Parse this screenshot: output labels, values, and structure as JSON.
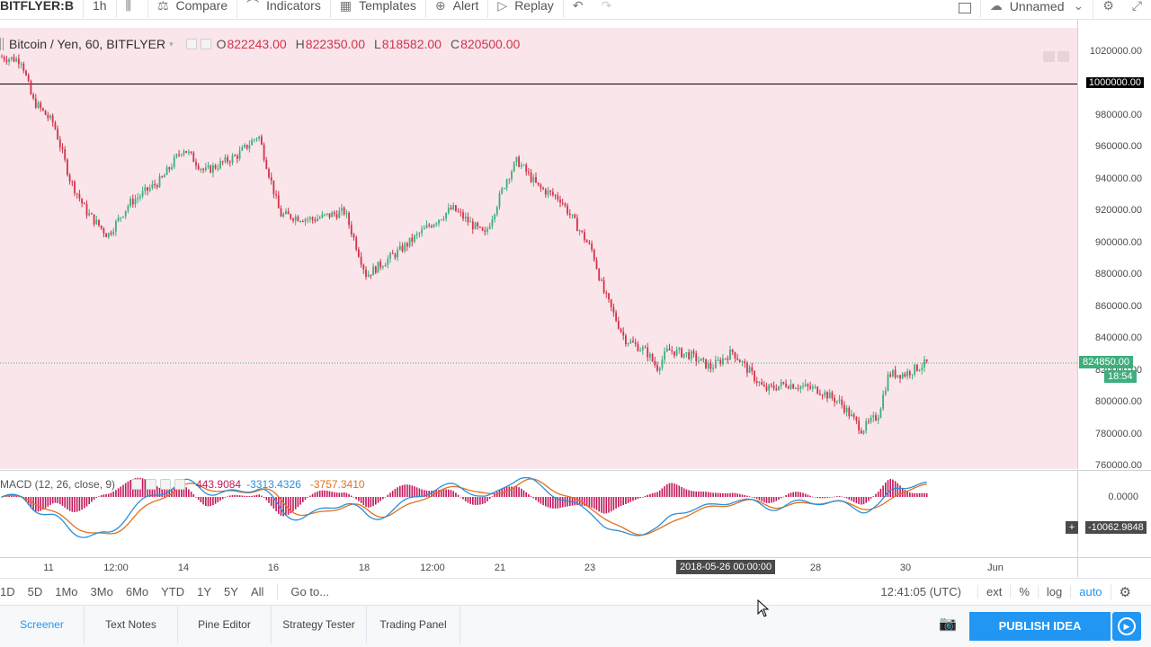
{
  "toolbar": {
    "symbol": "BITFLYER:B",
    "interval": "1h",
    "compare": "Compare",
    "indicators": "Indicators",
    "templates": "Templates",
    "alert": "Alert",
    "replay": "Replay",
    "layout_name": "Unnamed"
  },
  "legend": {
    "symbol_desc": "Bitcoin / Yen, 60, BITFLYER",
    "open_label": "O",
    "open": "822243.00",
    "high_label": "H",
    "high": "822350.00",
    "low_label": "L",
    "low": "818582.00",
    "close_label": "C",
    "close": "820500.00"
  },
  "price_axis": {
    "labels": [
      "1020000.00",
      "1000000.00",
      "980000.00",
      "960000.00",
      "940000.00",
      "920000.00",
      "900000.00",
      "880000.00",
      "860000.00",
      "840000.00",
      "820000.00",
      "800000.00",
      "780000.00",
      "760000.00"
    ],
    "horizontal_line": "1000000.00",
    "last_price": "824850.00",
    "countdown": "18:54"
  },
  "macd": {
    "name": "MACD (12, 26, close, 9)",
    "hist": "443.9084",
    "macd": "-3313.4326",
    "signal": "-3757.3410",
    "axis_zero": "0.0000",
    "axis_cursor": "-10062.9848"
  },
  "time_axis": {
    "labels": [
      "11",
      "12:00",
      "14",
      "16",
      "18",
      "12:00",
      "21",
      "23",
      "28",
      "30",
      "Jun"
    ],
    "crosshair": "2018-05-26 00:00:00"
  },
  "range_bar": {
    "ranges": [
      "1D",
      "5D",
      "1Mo",
      "3Mo",
      "6Mo",
      "YTD",
      "1Y",
      "5Y",
      "All"
    ],
    "goto": "Go to...",
    "clock": "12:41:05 (UTC)",
    "ext": "ext",
    "percent": "%",
    "log": "log",
    "auto": "auto"
  },
  "bottom": {
    "tabs": [
      "Screener",
      "Text Notes",
      "Pine Editor",
      "Strategy Tester",
      "Trading Panel"
    ],
    "publish": "PUBLISH IDEA"
  },
  "colors": {
    "up": "#3fae7d",
    "down": "#d2334b",
    "bg": "#f9e5ea",
    "accent": "#2196f3",
    "macd_line": "#2b8fd6",
    "signal_line": "#e2711d",
    "hist": "#c2185b"
  },
  "chart_data": {
    "type": "candlestick",
    "title": "Bitcoin / Yen, 60, BITFLYER",
    "ylim": [
      760000,
      1020000
    ],
    "y_ticks": [
      760000,
      780000,
      800000,
      820000,
      840000,
      860000,
      880000,
      900000,
      920000,
      940000,
      960000,
      980000,
      1000000,
      1020000
    ],
    "reference_line": 1000000,
    "last": 824850,
    "x_ticks": [
      "11",
      "12:00",
      "14",
      "16",
      "18",
      "12:00",
      "21",
      "23",
      "2018-05-26 00:00:00",
      "28",
      "30",
      "Jun"
    ],
    "trend_anchors": [
      [
        0,
        1017000
      ],
      [
        0.02,
        1015000
      ],
      [
        0.03,
        990000
      ],
      [
        0.05,
        975000
      ],
      [
        0.065,
        940000
      ],
      [
        0.08,
        920000
      ],
      [
        0.1,
        905000
      ],
      [
        0.12,
        925000
      ],
      [
        0.15,
        940000
      ],
      [
        0.17,
        960000
      ],
      [
        0.19,
        945000
      ],
      [
        0.22,
        955000
      ],
      [
        0.24,
        968000
      ],
      [
        0.26,
        918000
      ],
      [
        0.29,
        915000
      ],
      [
        0.32,
        920000
      ],
      [
        0.34,
        880000
      ],
      [
        0.37,
        895000
      ],
      [
        0.4,
        912000
      ],
      [
        0.42,
        922000
      ],
      [
        0.45,
        905000
      ],
      [
        0.47,
        940000
      ],
      [
        0.48,
        952000
      ],
      [
        0.5,
        935000
      ],
      [
        0.52,
        928000
      ],
      [
        0.55,
        895000
      ],
      [
        0.56,
        870000
      ],
      [
        0.58,
        840000
      ],
      [
        0.6,
        832000
      ],
      [
        0.61,
        822000
      ],
      [
        0.62,
        833000
      ],
      [
        0.64,
        830000
      ],
      [
        0.66,
        822000
      ],
      [
        0.68,
        832000
      ],
      [
        0.71,
        808000
      ],
      [
        0.73,
        812000
      ],
      [
        0.76,
        808000
      ],
      [
        0.78,
        800000
      ],
      [
        0.8,
        783000
      ],
      [
        0.815,
        792000
      ],
      [
        0.825,
        818000
      ],
      [
        0.84,
        818000
      ],
      [
        0.86,
        824850
      ]
    ],
    "macd_series": {
      "name": "MACD (12, 26, close, 9)"
    }
  }
}
